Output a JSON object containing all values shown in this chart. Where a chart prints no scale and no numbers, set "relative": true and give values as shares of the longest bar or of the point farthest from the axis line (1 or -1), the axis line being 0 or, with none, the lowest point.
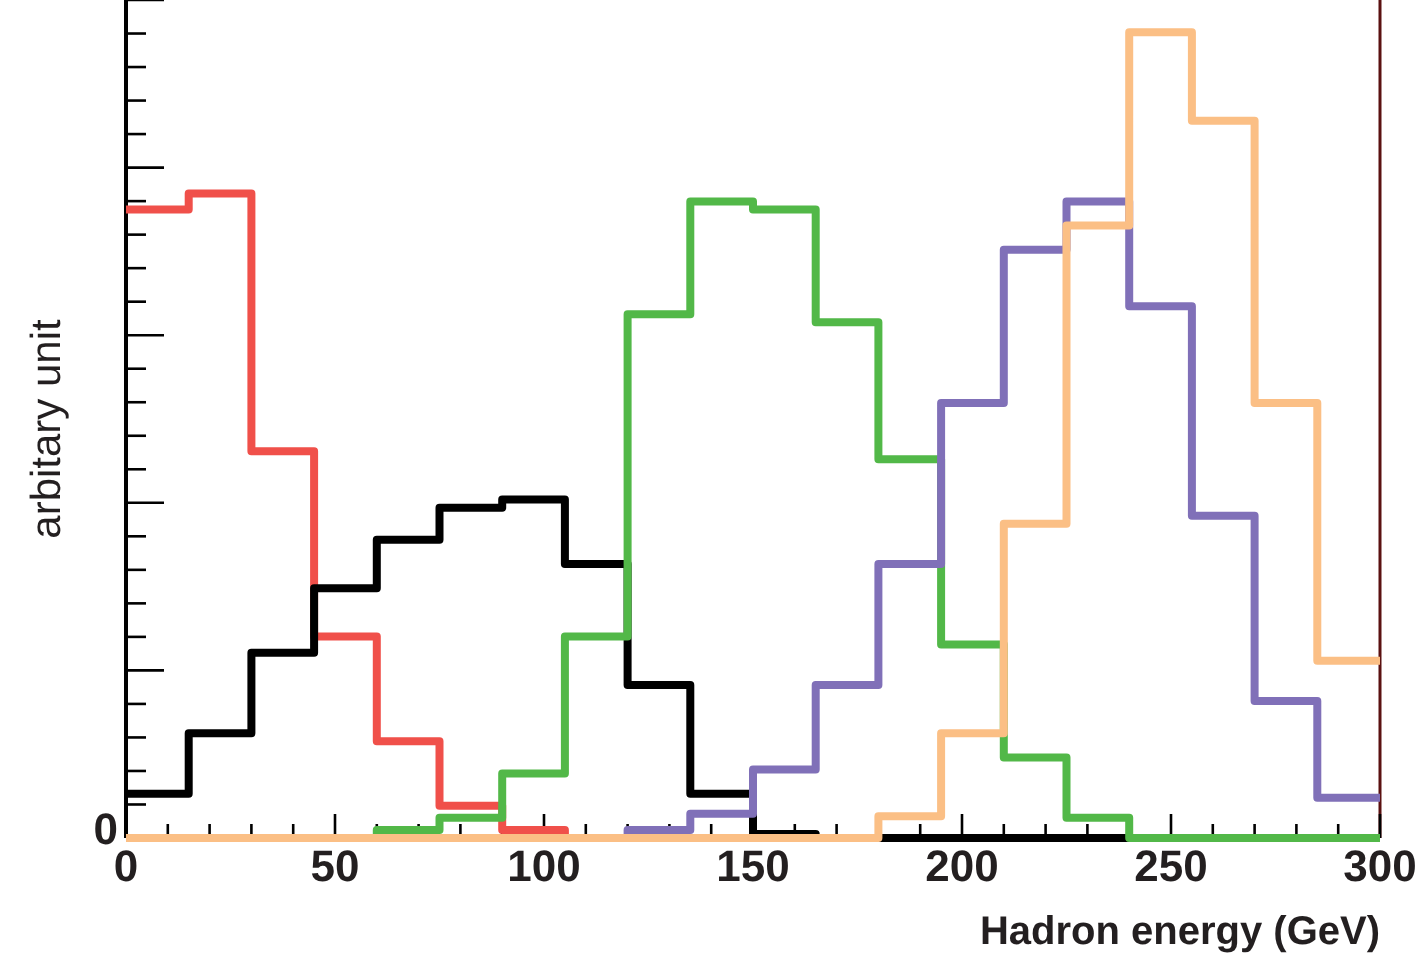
{
  "chart_data": {
    "type": "step",
    "xlabel": "Hadron energy (GeV)",
    "ylabel": "arbitary unit",
    "relative": true,
    "x": [
      0,
      15,
      30,
      45,
      60,
      75,
      90,
      105,
      120,
      135,
      150,
      165,
      180,
      195,
      210,
      225,
      240,
      255,
      270,
      285,
      300
    ],
    "xlim": [
      0,
      300
    ],
    "xticks": [
      0,
      50,
      100,
      150,
      200,
      250,
      300
    ],
    "annotations": [
      "0"
    ],
    "series": [
      {
        "color": "#f0504a",
        "values": [
          0.78,
          0.8,
          0.48,
          0.25,
          0.12,
          0.04,
          0.01,
          0,
          null,
          null,
          null,
          null,
          null,
          null,
          null,
          null,
          null,
          null,
          null,
          null,
          null
        ]
      },
      {
        "color": "#000000",
        "values": [
          0.055,
          0.13,
          0.23,
          0.31,
          0.37,
          0.41,
          0.42,
          0.34,
          0.19,
          0.055,
          0.005,
          0,
          0,
          0,
          0,
          0,
          0,
          0,
          0,
          0,
          0
        ]
      },
      {
        "color": "#52b848",
        "values": [
          null,
          null,
          null,
          0,
          0.01,
          0.025,
          0.08,
          0.25,
          0.65,
          0.79,
          0.78,
          0.64,
          0.47,
          0.24,
          0.1,
          0.025,
          0,
          0,
          0,
          0,
          0
        ]
      },
      {
        "color": "#8070b8",
        "values": [
          null,
          null,
          null,
          null,
          null,
          null,
          null,
          0,
          0.01,
          0.03,
          0.085,
          0.19,
          0.34,
          0.54,
          0.73,
          0.79,
          0.66,
          0.4,
          0.17,
          0.05,
          0.05
        ]
      },
      {
        "color": "#fbbf85",
        "values": [
          0,
          0,
          0,
          0,
          0,
          0,
          0,
          0,
          0,
          0,
          0,
          0,
          0.027,
          0.13,
          0.39,
          0.76,
          1,
          0.89,
          0.54,
          0.22,
          0.22
        ]
      }
    ]
  }
}
